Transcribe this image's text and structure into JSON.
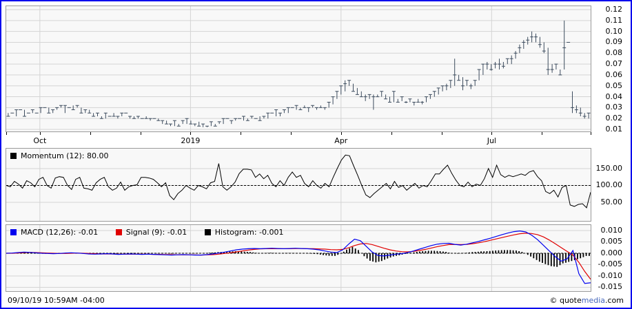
{
  "window": {
    "border_color": "#0000ee",
    "background": "#ffffff"
  },
  "status_bar": {
    "timestamp": "09/10/19 10:59AM -04:00",
    "credit_prefix": "© quote",
    "credit_mid": "media",
    "credit_suffix": ".com"
  },
  "x_axis": {
    "ticks": [
      {
        "f": 0.0,
        "label": ""
      },
      {
        "f": 0.0576,
        "label": "Oct"
      },
      {
        "f": 0.1435,
        "label": ""
      },
      {
        "f": 0.2294,
        "label": ""
      },
      {
        "f": 0.3153,
        "label": "2019"
      },
      {
        "f": 0.4012,
        "label": ""
      },
      {
        "f": 0.4871,
        "label": ""
      },
      {
        "f": 0.5729,
        "label": "Apr"
      },
      {
        "f": 0.6588,
        "label": ""
      },
      {
        "f": 0.7447,
        "label": ""
      },
      {
        "f": 0.8306,
        "label": "Jul"
      },
      {
        "f": 0.9165,
        "label": ""
      },
      {
        "f": 1.0,
        "label": ""
      }
    ],
    "vgrid_f": [
      0.0576,
      0.3153,
      0.5729,
      0.8306
    ]
  },
  "colors": {
    "grid": "#d4d4d4",
    "panel_bg": "#f8f8f8",
    "panel_border": "#9a9a9a",
    "price_bar": "#3d4c5e",
    "momentum_line": "#000000",
    "macd_line": "#0000ee",
    "signal_line": "#e00000",
    "histogram_bar": "#000000"
  },
  "chart_data": [
    {
      "type": "ohlc",
      "name": "price",
      "ylim": [
        0.0081,
        0.1232
      ],
      "yticks": [
        0.12,
        0.11,
        0.1,
        0.09,
        0.08,
        0.07,
        0.06,
        0.05,
        0.04,
        0.03,
        0.02,
        0.01
      ],
      "decimals": 2,
      "scale": 0.001,
      "bars": [
        [
          25,
          22,
          22
        ],
        [
          25,
          25,
          25
        ],
        [
          28,
          22,
          28
        ],
        [
          28,
          28,
          28
        ],
        [
          28,
          22,
          22
        ],
        [
          25,
          25,
          25
        ],
        [
          28,
          25,
          28
        ],
        [
          25,
          25,
          25
        ],
        [
          30,
          25,
          30
        ],
        [
          30,
          30,
          30
        ],
        [
          30,
          25,
          25
        ],
        [
          28,
          25,
          28
        ],
        [
          30,
          28,
          30
        ],
        [
          32,
          30,
          32
        ],
        [
          32,
          25,
          32
        ],
        [
          30,
          30,
          30
        ],
        [
          32,
          28,
          28
        ],
        [
          32,
          30,
          32
        ],
        [
          30,
          25,
          25
        ],
        [
          28,
          25,
          28
        ],
        [
          28,
          25,
          25
        ],
        [
          25,
          22,
          22
        ],
        [
          25,
          22,
          25
        ],
        [
          22,
          20,
          20
        ],
        [
          25,
          20,
          25
        ],
        [
          22,
          22,
          22
        ],
        [
          25,
          22,
          22
        ],
        [
          22,
          20,
          22
        ],
        [
          25,
          22,
          25
        ],
        [
          25,
          25,
          25
        ],
        [
          22,
          20,
          22
        ],
        [
          22,
          20,
          20
        ],
        [
          22,
          20,
          22
        ],
        [
          20,
          20,
          20
        ],
        [
          22,
          20,
          20
        ],
        [
          20,
          18,
          20
        ],
        [
          20,
          20,
          20
        ],
        [
          20,
          18,
          18
        ],
        [
          18,
          15,
          18
        ],
        [
          18,
          15,
          15
        ],
        [
          15,
          13,
          15
        ],
        [
          18,
          13,
          18
        ],
        [
          15,
          13,
          13
        ],
        [
          18,
          15,
          18
        ],
        [
          20,
          15,
          20
        ],
        [
          18,
          15,
          15
        ],
        [
          15,
          13,
          15
        ],
        [
          17,
          13,
          13
        ],
        [
          15,
          12,
          15
        ],
        [
          13,
          12,
          13
        ],
        [
          17,
          13,
          17
        ],
        [
          15,
          13,
          13
        ],
        [
          17,
          15,
          17
        ],
        [
          20,
          15,
          20
        ],
        [
          20,
          20,
          20
        ],
        [
          18,
          15,
          18
        ],
        [
          20,
          18,
          20
        ],
        [
          20,
          20,
          20
        ],
        [
          22,
          18,
          22
        ],
        [
          20,
          18,
          18
        ],
        [
          22,
          20,
          22
        ],
        [
          20,
          20,
          20
        ],
        [
          22,
          18,
          18
        ],
        [
          22,
          20,
          22
        ],
        [
          25,
          20,
          25
        ],
        [
          25,
          25,
          25
        ],
        [
          28,
          22,
          28
        ],
        [
          25,
          22,
          25
        ],
        [
          28,
          25,
          28
        ],
        [
          30,
          25,
          30
        ],
        [
          30,
          30,
          30
        ],
        [
          32,
          28,
          32
        ],
        [
          30,
          28,
          28
        ],
        [
          32,
          30,
          30
        ],
        [
          30,
          26,
          30
        ],
        [
          32,
          30,
          32
        ],
        [
          30,
          28,
          30
        ],
        [
          32,
          30,
          30
        ],
        [
          30,
          28,
          30
        ],
        [
          35,
          30,
          35
        ],
        [
          40,
          33,
          40
        ],
        [
          45,
          38,
          45
        ],
        [
          50,
          42,
          50
        ],
        [
          55,
          45,
          52
        ],
        [
          55,
          50,
          55
        ],
        [
          52,
          45,
          45
        ],
        [
          48,
          42,
          42
        ],
        [
          45,
          40,
          40
        ],
        [
          42,
          36,
          40
        ],
        [
          42,
          38,
          42
        ],
        [
          42,
          28,
          40
        ],
        [
          42,
          40,
          40
        ],
        [
          45,
          40,
          45
        ],
        [
          42,
          38,
          38
        ],
        [
          40,
          35,
          35
        ],
        [
          45,
          35,
          45
        ],
        [
          38,
          35,
          35
        ],
        [
          40,
          36,
          40
        ],
        [
          36,
          34,
          35
        ],
        [
          38,
          35,
          38
        ],
        [
          35,
          32,
          35
        ],
        [
          38,
          35,
          35
        ],
        [
          36,
          33,
          35
        ],
        [
          40,
          35,
          40
        ],
        [
          42,
          38,
          42
        ],
        [
          45,
          40,
          45
        ],
        [
          48,
          42,
          48
        ],
        [
          50,
          45,
          50
        ],
        [
          52,
          46,
          50
        ],
        [
          55,
          48,
          55
        ],
        [
          75,
          50,
          60
        ],
        [
          60,
          55,
          55
        ],
        [
          58,
          46,
          50
        ],
        [
          55,
          50,
          55
        ],
        [
          52,
          47,
          50
        ],
        [
          55,
          50,
          55
        ],
        [
          65,
          55,
          65
        ],
        [
          70,
          60,
          70
        ],
        [
          72,
          65,
          70
        ],
        [
          70,
          64,
          65
        ],
        [
          72,
          66,
          70
        ],
        [
          75,
          65,
          70
        ],
        [
          72,
          66,
          68
        ],
        [
          75,
          70,
          75
        ],
        [
          78,
          70,
          75
        ],
        [
          82,
          75,
          80
        ],
        [
          88,
          80,
          85
        ],
        [
          92,
          84,
          90
        ],
        [
          95,
          88,
          92
        ],
        [
          100,
          90,
          95
        ],
        [
          98,
          90,
          95
        ],
        [
          95,
          85,
          88
        ],
        [
          90,
          80,
          82
        ],
        [
          85,
          60,
          65
        ],
        [
          70,
          62,
          65
        ],
        [
          70,
          65,
          70
        ],
        [
          65,
          60,
          60
        ],
        [
          110,
          65,
          85
        ],
        [
          90,
          90,
          90
        ],
        [
          45,
          25,
          30
        ],
        [
          32,
          25,
          28
        ],
        [
          30,
          22,
          25
        ],
        [
          25,
          20,
          22
        ],
        [
          25,
          20,
          25
        ]
      ]
    },
    {
      "type": "line",
      "name": "momentum",
      "legend": [
        {
          "label": "Momentum (12): 80.00",
          "color": "#000000"
        }
      ],
      "ylim": [
        -5,
        209
      ],
      "yticks": [
        150,
        100,
        50
      ],
      "decimals": 2,
      "baseline": 100,
      "values": [
        100,
        96,
        112,
        104,
        92,
        114,
        108,
        96,
        118,
        124,
        100,
        92,
        122,
        126,
        124,
        100,
        88,
        118,
        124,
        92,
        90,
        86,
        108,
        118,
        124,
        96,
        86,
        92,
        110,
        86,
        96,
        100,
        102,
        124,
        124,
        122,
        118,
        108,
        96,
        108,
        70,
        58,
        76,
        86,
        100,
        92,
        86,
        100,
        96,
        90,
        108,
        112,
        165,
        96,
        86,
        96,
        110,
        135,
        148,
        148,
        146,
        124,
        134,
        120,
        130,
        106,
        96,
        114,
        100,
        124,
        140,
        124,
        130,
        106,
        96,
        114,
        100,
        92,
        106,
        96,
        124,
        150,
        175,
        190,
        188,
        158,
        130,
        100,
        72,
        64,
        76,
        86,
        96,
        106,
        90,
        112,
        94,
        100,
        86,
        96,
        106,
        92,
        100,
        96,
        114,
        134,
        134,
        148,
        160,
        136,
        116,
        100,
        96,
        110,
        96,
        104,
        100,
        120,
        150,
        124,
        160,
        132,
        124,
        130,
        126,
        130,
        134,
        130,
        140,
        144,
        126,
        114,
        82,
        76,
        86,
        66,
        94,
        100,
        42,
        38,
        44,
        46,
        34,
        80
      ]
    },
    {
      "type": "macd",
      "name": "macd",
      "legend": [
        {
          "label": "MACD (12,26): -0.01",
          "color": "#0000ee"
        },
        {
          "label": "Signal (9): -0.01",
          "color": "#e00000"
        },
        {
          "label": "Histogram: -0.001",
          "color": "#000000"
        }
      ],
      "ylim": [
        -0.01667,
        0.01242
      ],
      "yticks": [
        0.01,
        0.005,
        0.0,
        -0.005,
        -0.01,
        -0.015
      ],
      "decimals": 3,
      "baseline": 0,
      "scale": 0.001,
      "macd": [
        0.0,
        0.1,
        0.3,
        0.5,
        0.4,
        0.2,
        0.0,
        -0.1,
        -0.2,
        -0.1,
        0.1,
        0.2,
        0.1,
        -0.1,
        -0.3,
        -0.4,
        -0.3,
        -0.2,
        -0.3,
        -0.5,
        -0.4,
        -0.3,
        -0.4,
        -0.5,
        -0.4,
        -0.5,
        -0.6,
        -0.7,
        -0.8,
        -0.7,
        -0.6,
        -0.7,
        -0.8,
        -0.8,
        -0.6,
        -0.3,
        0.1,
        0.5,
        1.0,
        1.5,
        1.8,
        2.0,
        2.1,
        2.0,
        2.1,
        2.2,
        2.1,
        2.0,
        2.1,
        2.2,
        2.1,
        2.0,
        1.8,
        1.5,
        1.0,
        0.5,
        0.3,
        1.5,
        4.0,
        6.2,
        5.5,
        3.0,
        0.5,
        -1.0,
        -1.2,
        -0.8,
        -0.4,
        -0.2,
        0.3,
        1.0,
        1.8,
        2.6,
        3.4,
        4.0,
        4.3,
        4.4,
        3.9,
        3.6,
        4.0,
        4.6,
        5.2,
        5.9,
        6.6,
        7.4,
        8.2,
        8.9,
        9.5,
        9.8,
        9.4,
        8.0,
        6.0,
        3.5,
        1.0,
        -1.5,
        -3.5,
        -2.5,
        1.2,
        -9.0,
        -13.3,
        -13.0
      ],
      "signal": [
        0.0,
        0.0,
        0.1,
        0.3,
        0.4,
        0.3,
        0.2,
        0.1,
        0.0,
        -0.1,
        -0.1,
        0.0,
        0.1,
        0.0,
        -0.1,
        -0.2,
        -0.3,
        -0.3,
        -0.3,
        -0.4,
        -0.4,
        -0.4,
        -0.4,
        -0.4,
        -0.4,
        -0.5,
        -0.5,
        -0.6,
        -0.6,
        -0.7,
        -0.7,
        -0.7,
        -0.7,
        -0.8,
        -0.7,
        -0.6,
        -0.4,
        -0.1,
        0.2,
        0.6,
        1.0,
        1.4,
        1.7,
        1.9,
        2.0,
        2.0,
        2.0,
        2.0,
        2.0,
        2.1,
        2.1,
        2.0,
        2.0,
        1.9,
        1.8,
        1.6,
        1.5,
        1.7,
        2.4,
        3.4,
        4.1,
        4.3,
        3.8,
        3.0,
        2.2,
        1.5,
        1.0,
        0.7,
        0.6,
        0.8,
        1.2,
        1.7,
        2.3,
        2.9,
        3.4,
        3.8,
        3.9,
        3.8,
        3.9,
        4.2,
        4.6,
        5.1,
        5.7,
        6.3,
        6.9,
        7.5,
        8.1,
        8.6,
        8.8,
        8.7,
        8.2,
        7.2,
        5.8,
        4.2,
        2.5,
        0.8,
        -0.8,
        -4.0,
        -8.0,
        -11.5
      ],
      "histogram": [
        0.0,
        0.1,
        0.2,
        0.2,
        0.1,
        -0.1,
        -0.2,
        -0.2,
        -0.2,
        0.0,
        0.2,
        0.2,
        0.0,
        -0.1,
        -0.2,
        -0.2,
        0.0,
        0.1,
        0.0,
        -0.1,
        0.0,
        0.1,
        0.0,
        -0.1,
        0.0,
        0.0,
        -0.1,
        -0.1,
        -0.2,
        0.0,
        0.1,
        0.0,
        -0.1,
        0.0,
        0.1,
        0.3,
        0.5,
        0.6,
        0.8,
        0.9,
        0.8,
        0.6,
        0.4,
        0.1,
        0.1,
        0.2,
        0.1,
        0.0,
        0.1,
        0.1,
        0.0,
        0.0,
        -0.2,
        -0.4,
        -0.8,
        -1.1,
        -1.2,
        -0.2,
        1.6,
        2.8,
        1.4,
        -1.3,
        -3.3,
        -4.0,
        -3.4,
        -2.3,
        -1.4,
        -0.9,
        -0.3,
        0.2,
        0.6,
        0.9,
        1.1,
        1.1,
        0.9,
        0.6,
        0.0,
        -0.2,
        0.1,
        0.4,
        0.6,
        0.8,
        0.9,
        1.1,
        1.3,
        1.4,
        1.4,
        1.2,
        0.6,
        -0.7,
        -2.2,
        -3.7,
        -4.8,
        -5.7,
        -6.0,
        -4.5,
        -3.8,
        -3.0,
        -2.2,
        -1.2
      ]
    }
  ]
}
